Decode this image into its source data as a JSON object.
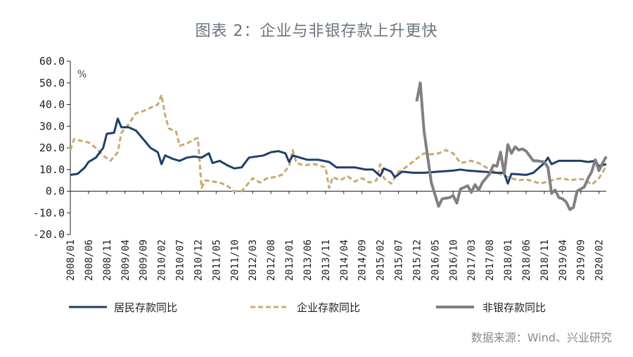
{
  "page": {
    "title": "图表 2：企业与非银存款上升更快",
    "source": "数据来源：Wind、兴业研究"
  },
  "chart_data": {
    "type": "line",
    "ylabel": "%",
    "ylim": [
      -20,
      60
    ],
    "yticks": [
      "60.0",
      "50.0",
      "40.0",
      "30.0",
      "20.0",
      "10.0",
      "0.0",
      "-10.0",
      "-20.0"
    ],
    "ytick_values": [
      60,
      50,
      40,
      30,
      20,
      10,
      0,
      -10,
      -20
    ],
    "xtick_labels": [
      "2008/01",
      "2008/06",
      "2008/11",
      "2009/04",
      "2009/09",
      "2010/02",
      "2010/07",
      "2010/12",
      "2011/05",
      "2011/10",
      "2012/03",
      "2012/08",
      "2013/01",
      "2013/06",
      "2013/11",
      "2014/04",
      "2014/09",
      "2015/02",
      "2015/07",
      "2015/12",
      "2016/05",
      "2016/10",
      "2017/03",
      "2017/08",
      "2018/01",
      "2018/06",
      "2018/11",
      "2019/04",
      "2019/09",
      "2020/02"
    ],
    "x_first": "2008/01",
    "x_last": "2020/04",
    "legend_position": "bottom",
    "grid": false,
    "colors": {
      "household": "#1f3f6b",
      "corporate": "#c9a96e",
      "nonbank": "#808080"
    },
    "series": [
      {
        "name": "居民存款同比",
        "key": "household",
        "style": "solid",
        "points": [
          [
            "2008/01",
            7.5
          ],
          [
            "2008/03",
            8.0
          ],
          [
            "2008/05",
            11.0
          ],
          [
            "2008/06",
            13.5
          ],
          [
            "2008/08",
            15.5
          ],
          [
            "2008/10",
            20.0
          ],
          [
            "2008/11",
            26.5
          ],
          [
            "2009/01",
            27.0
          ],
          [
            "2009/02",
            33.5
          ],
          [
            "2009/03",
            29.5
          ],
          [
            "2009/05",
            29.5
          ],
          [
            "2009/07",
            28.0
          ],
          [
            "2009/09",
            24.0
          ],
          [
            "2009/11",
            20.0
          ],
          [
            "2010/01",
            18.0
          ],
          [
            "2010/02",
            12.5
          ],
          [
            "2010/03",
            16.5
          ],
          [
            "2010/05",
            15.0
          ],
          [
            "2010/07",
            14.0
          ],
          [
            "2010/09",
            15.5
          ],
          [
            "2010/11",
            16.0
          ],
          [
            "2011/01",
            15.5
          ],
          [
            "2011/03",
            17.5
          ],
          [
            "2011/04",
            13.0
          ],
          [
            "2011/06",
            14.0
          ],
          [
            "2011/08",
            12.0
          ],
          [
            "2011/10",
            10.5
          ],
          [
            "2011/12",
            11.0
          ],
          [
            "2012/02",
            15.5
          ],
          [
            "2012/04",
            16.0
          ],
          [
            "2012/06",
            16.5
          ],
          [
            "2012/08",
            18.0
          ],
          [
            "2012/10",
            18.5
          ],
          [
            "2012/12",
            17.5
          ],
          [
            "2013/01",
            13.5
          ],
          [
            "2013/02",
            16.5
          ],
          [
            "2013/04",
            15.5
          ],
          [
            "2013/06",
            14.5
          ],
          [
            "2013/09",
            14.5
          ],
          [
            "2013/12",
            13.5
          ],
          [
            "2014/02",
            11.0
          ],
          [
            "2014/04",
            11.0
          ],
          [
            "2014/07",
            11.0
          ],
          [
            "2014/10",
            10.0
          ],
          [
            "2014/12",
            10.0
          ],
          [
            "2015/02",
            7.0
          ],
          [
            "2015/03",
            10.5
          ],
          [
            "2015/05",
            9.0
          ],
          [
            "2015/06",
            6.5
          ],
          [
            "2015/08",
            9.0
          ],
          [
            "2015/11",
            8.5
          ],
          [
            "2016/02",
            8.5
          ],
          [
            "2016/06",
            9.0
          ],
          [
            "2016/10",
            9.5
          ],
          [
            "2016/12",
            10.0
          ],
          [
            "2017/02",
            9.5
          ],
          [
            "2017/06",
            9.0
          ],
          [
            "2017/10",
            8.5
          ],
          [
            "2017/12",
            8.5
          ],
          [
            "2018/01",
            3.5
          ],
          [
            "2018/02",
            8.0
          ],
          [
            "2018/06",
            7.5
          ],
          [
            "2018/08",
            8.5
          ],
          [
            "2018/11",
            13.0
          ],
          [
            "2018/12",
            15.5
          ],
          [
            "2019/01",
            12.5
          ],
          [
            "2019/03",
            14.0
          ],
          [
            "2019/06",
            14.0
          ],
          [
            "2019/09",
            14.0
          ],
          [
            "2019/11",
            13.5
          ],
          [
            "2020/01",
            14.0
          ],
          [
            "2020/02",
            11.5
          ],
          [
            "2020/04",
            12.5
          ]
        ]
      },
      {
        "name": "企业存款同比",
        "key": "corporate",
        "style": "dashed",
        "points": [
          [
            "2008/01",
            19.0
          ],
          [
            "2008/02",
            24.0
          ],
          [
            "2008/06",
            22.5
          ],
          [
            "2008/08",
            20.0
          ],
          [
            "2008/10",
            16.5
          ],
          [
            "2008/12",
            14.0
          ],
          [
            "2009/02",
            18.0
          ],
          [
            "2009/03",
            27.0
          ],
          [
            "2009/05",
            31.0
          ],
          [
            "2009/07",
            36.0
          ],
          [
            "2009/09",
            37.0
          ],
          [
            "2009/11",
            38.5
          ],
          [
            "2010/01",
            40.0
          ],
          [
            "2010/02",
            44.5
          ],
          [
            "2010/03",
            35.0
          ],
          [
            "2010/04",
            29.0
          ],
          [
            "2010/06",
            27.5
          ],
          [
            "2010/07",
            21.0
          ],
          [
            "2010/09",
            22.0
          ],
          [
            "2010/11",
            24.0
          ],
          [
            "2010/12",
            24.5
          ],
          [
            "2011/01",
            1.5
          ],
          [
            "2011/02",
            5.0
          ],
          [
            "2011/04",
            4.5
          ],
          [
            "2011/06",
            4.0
          ],
          [
            "2011/08",
            2.5
          ],
          [
            "2011/10",
            0.0
          ],
          [
            "2011/12",
            0.0
          ],
          [
            "2012/02",
            4.0
          ],
          [
            "2012/03",
            6.0
          ],
          [
            "2012/05",
            4.0
          ],
          [
            "2012/07",
            6.0
          ],
          [
            "2012/09",
            6.5
          ],
          [
            "2012/11",
            7.5
          ],
          [
            "2013/01",
            11.5
          ],
          [
            "2013/02",
            19.0
          ],
          [
            "2013/03",
            13.0
          ],
          [
            "2013/05",
            12.0
          ],
          [
            "2013/08",
            12.5
          ],
          [
            "2013/11",
            11.0
          ],
          [
            "2013/12",
            1.5
          ],
          [
            "2014/01",
            6.5
          ],
          [
            "2014/03",
            5.0
          ],
          [
            "2014/05",
            7.0
          ],
          [
            "2014/07",
            4.5
          ],
          [
            "2014/09",
            6.0
          ],
          [
            "2014/11",
            4.0
          ],
          [
            "2015/01",
            5.0
          ],
          [
            "2015/02",
            12.5
          ],
          [
            "2015/03",
            6.0
          ],
          [
            "2015/05",
            3.5
          ],
          [
            "2015/07",
            9.0
          ],
          [
            "2015/09",
            11.0
          ],
          [
            "2015/12",
            15.0
          ],
          [
            "2016/02",
            17.5
          ],
          [
            "2016/04",
            17.0
          ],
          [
            "2016/06",
            17.5
          ],
          [
            "2016/08",
            19.0
          ],
          [
            "2016/10",
            17.5
          ],
          [
            "2016/12",
            13.0
          ],
          [
            "2017/03",
            14.0
          ],
          [
            "2017/05",
            13.0
          ],
          [
            "2017/07",
            11.0
          ],
          [
            "2017/10",
            8.5
          ],
          [
            "2017/12",
            7.0
          ],
          [
            "2018/02",
            6.0
          ],
          [
            "2018/04",
            5.0
          ],
          [
            "2018/06",
            5.5
          ],
          [
            "2018/08",
            4.5
          ],
          [
            "2018/10",
            3.5
          ],
          [
            "2018/12",
            4.5
          ],
          [
            "2019/02",
            5.5
          ],
          [
            "2019/04",
            6.0
          ],
          [
            "2019/06",
            5.0
          ],
          [
            "2019/08",
            5.5
          ],
          [
            "2019/10",
            5.5
          ],
          [
            "2019/12",
            3.0
          ],
          [
            "2020/02",
            6.0
          ],
          [
            "2020/04",
            11.5
          ]
        ]
      },
      {
        "name": "非银存款同比",
        "key": "nonbank",
        "style": "solid",
        "points": [
          [
            "2015/12",
            41.5
          ],
          [
            "2016/01",
            50.0
          ],
          [
            "2016/02",
            28.0
          ],
          [
            "2016/03",
            16.0
          ],
          [
            "2016/04",
            4.0
          ],
          [
            "2016/06",
            -7.0
          ],
          [
            "2016/07",
            -3.5
          ],
          [
            "2016/09",
            -3.0
          ],
          [
            "2016/10",
            -2.0
          ],
          [
            "2016/11",
            -5.5
          ],
          [
            "2016/12",
            1.0
          ],
          [
            "2017/02",
            2.5
          ],
          [
            "2017/03",
            -0.5
          ],
          [
            "2017/04",
            3.0
          ],
          [
            "2017/05",
            0.5
          ],
          [
            "2017/06",
            4.0
          ],
          [
            "2017/08",
            8.0
          ],
          [
            "2017/09",
            12.0
          ],
          [
            "2017/10",
            11.5
          ],
          [
            "2017/11",
            18.0
          ],
          [
            "2017/12",
            8.0
          ],
          [
            "2018/01",
            21.5
          ],
          [
            "2018/02",
            17.5
          ],
          [
            "2018/03",
            20.5
          ],
          [
            "2018/04",
            19.0
          ],
          [
            "2018/05",
            19.5
          ],
          [
            "2018/06",
            18.5
          ],
          [
            "2018/08",
            14.0
          ],
          [
            "2018/09",
            14.0
          ],
          [
            "2018/11",
            13.5
          ],
          [
            "2018/12",
            11.0
          ],
          [
            "2019/01",
            -1.0
          ],
          [
            "2019/02",
            0.5
          ],
          [
            "2019/03",
            -3.0
          ],
          [
            "2019/04",
            -3.5
          ],
          [
            "2019/05",
            -5.0
          ],
          [
            "2019/06",
            -8.5
          ],
          [
            "2019/07",
            -7.5
          ],
          [
            "2019/08",
            0.0
          ],
          [
            "2019/10",
            2.0
          ],
          [
            "2019/11",
            6.0
          ],
          [
            "2019/12",
            9.0
          ],
          [
            "2020/01",
            14.5
          ],
          [
            "2020/02",
            9.5
          ],
          [
            "2020/03",
            13.0
          ],
          [
            "2020/04",
            16.0
          ]
        ]
      }
    ]
  }
}
